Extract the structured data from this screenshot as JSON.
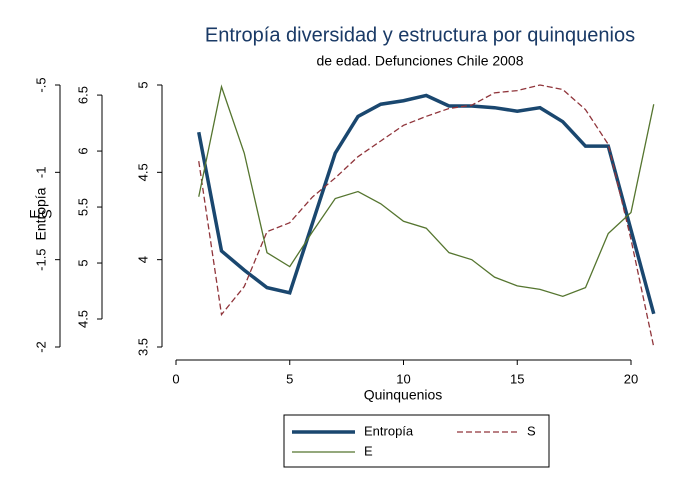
{
  "chart_data": {
    "type": "line",
    "title": "Entropía diversidad y estructura por quinquenios",
    "subtitle": "de edad. Defunciones Chile 2008",
    "x_label": "Quinquenios",
    "y_label": "Entropía",
    "y2_label": "S",
    "y3_label": "E",
    "x": [
      1,
      2,
      3,
      4,
      5,
      6,
      7,
      8,
      9,
      10,
      11,
      12,
      13,
      14,
      15,
      16,
      17,
      18,
      19,
      20,
      21
    ],
    "xlim": [
      0,
      21
    ],
    "xticks": [
      0,
      5,
      10,
      15,
      20
    ],
    "ylim": [
      -2,
      -0.5
    ],
    "yticks": [
      -2,
      {
        "value": -1.5,
        "label": "-1.5"
      },
      -1,
      {
        "value": -0.5,
        "label": "-.5"
      }
    ],
    "y2lim": [
      4.25,
      6.59
    ],
    "y2ticks": [
      4.5,
      5,
      5.5,
      6,
      6.5
    ],
    "y3lim": [
      3.5,
      5
    ],
    "y3ticks": [
      3.5,
      4,
      4.5,
      5
    ],
    "series": [
      {
        "name": "Entropía",
        "color": "#1a476f",
        "axis": "y",
        "values": [
          -0.77,
          -1.45,
          -1.56,
          -1.66,
          -1.69,
          -1.29,
          -0.89,
          -0.68,
          -0.61,
          -0.59,
          -0.56,
          -0.62,
          -0.62,
          -0.63,
          -0.65,
          -0.63,
          -0.71,
          -0.85,
          -0.85,
          -1.33,
          -1.81
        ]
      },
      {
        "name": "S",
        "color": "#90353b",
        "axis": "y2",
        "dash": true,
        "values": [
          5.91,
          4.54,
          4.79,
          5.28,
          5.36,
          5.59,
          5.76,
          5.95,
          6.09,
          6.23,
          6.31,
          6.38,
          6.41,
          6.52,
          6.54,
          6.59,
          6.55,
          6.37,
          6.06,
          5.21,
          4.25
        ]
      },
      {
        "name": "E",
        "color": "#55752f",
        "axis": "y3",
        "values": [
          4.36,
          4.99,
          4.61,
          4.04,
          3.96,
          4.16,
          4.35,
          4.39,
          4.32,
          4.22,
          4.18,
          4.04,
          4.0,
          3.9,
          3.85,
          3.83,
          3.79,
          3.84,
          4.15,
          4.27,
          4.89
        ]
      }
    ]
  }
}
